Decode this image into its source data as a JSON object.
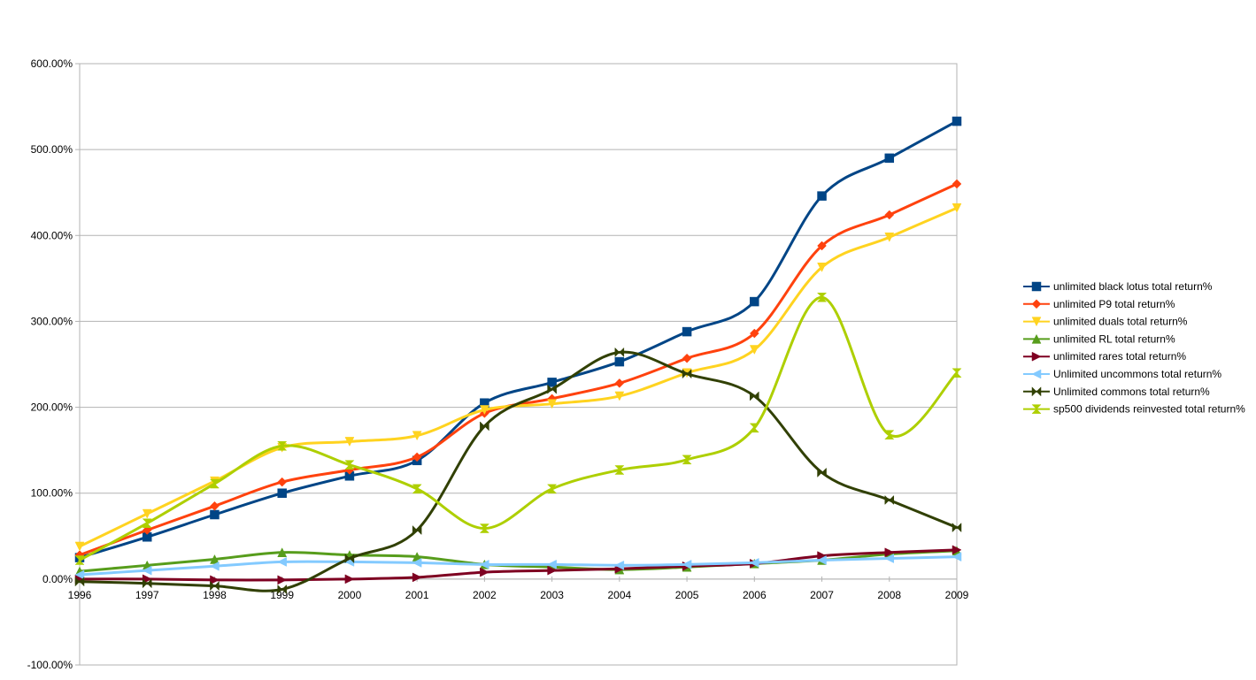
{
  "chart_data": {
    "type": "line",
    "x": [
      1996,
      1997,
      1998,
      1999,
      2000,
      2001,
      2002,
      2003,
      2004,
      2005,
      2006,
      2007,
      2008,
      2009
    ],
    "x_tick_labels": [
      "1996",
      "1997",
      "1998",
      "1999",
      "2000",
      "2001",
      "2002",
      "2003",
      "2004",
      "2005",
      "2006",
      "2007",
      "2008",
      "2009"
    ],
    "ylim": [
      -100,
      600
    ],
    "y_ticks": [
      -100,
      0,
      100,
      200,
      300,
      400,
      500,
      600
    ],
    "y_tick_labels": [
      "-100.00%",
      "0.00%",
      "100.00%",
      "200.00%",
      "300.00%",
      "400.00%",
      "500.00%",
      "600.00%"
    ],
    "grid": "horizontal",
    "smooth": true,
    "legend_position": "right",
    "series": [
      {
        "name": "unlimited black lotus total return%",
        "color": "#004586",
        "marker": "square",
        "values": [
          25,
          49,
          75,
          100,
          120,
          138,
          205,
          229,
          253,
          288,
          323,
          446,
          490,
          533
        ]
      },
      {
        "name": "unlimited P9 total return%",
        "color": "#ff420e",
        "marker": "diamond",
        "values": [
          28,
          57,
          85,
          113,
          127,
          142,
          193,
          210,
          228,
          257,
          286,
          388,
          424,
          460
        ]
      },
      {
        "name": "unlimited duals total return%",
        "color": "#ffd320",
        "marker": "triangle-down",
        "values": [
          38,
          76,
          114,
          153,
          160,
          167,
          197,
          204,
          213,
          240,
          267,
          363,
          398,
          432
        ]
      },
      {
        "name": "unlimited RL total return%",
        "color": "#579d1c",
        "marker": "triangle-up",
        "values": [
          9,
          16,
          23,
          31,
          28,
          26,
          17,
          14,
          11,
          14,
          18,
          22,
          29,
          33
        ]
      },
      {
        "name": "unlimited rares total return%",
        "color": "#7e0021",
        "marker": "triangle-right",
        "values": [
          0,
          0,
          -1,
          -1,
          0,
          2,
          8,
          10,
          12,
          15,
          18,
          27,
          31,
          34
        ]
      },
      {
        "name": "Unlimited uncommons total return%",
        "color": "#83caff",
        "marker": "triangle-left",
        "values": [
          5,
          10,
          15,
          20,
          20,
          19,
          17,
          17,
          16,
          17,
          19,
          22,
          24,
          26
        ]
      },
      {
        "name": "Unlimited commons total return%",
        "color": "#314004",
        "marker": "bowtie",
        "values": [
          -3,
          -5,
          -8,
          -12,
          24,
          57,
          178,
          221,
          264,
          239,
          213,
          124,
          92,
          60
        ]
      },
      {
        "name": "sp500 dividends reinvested total return%",
        "color": "#aecf00",
        "marker": "hourglass",
        "values": [
          22,
          65,
          111,
          155,
          133,
          105,
          59,
          105,
          127,
          139,
          176,
          328,
          168,
          240
        ]
      }
    ]
  }
}
